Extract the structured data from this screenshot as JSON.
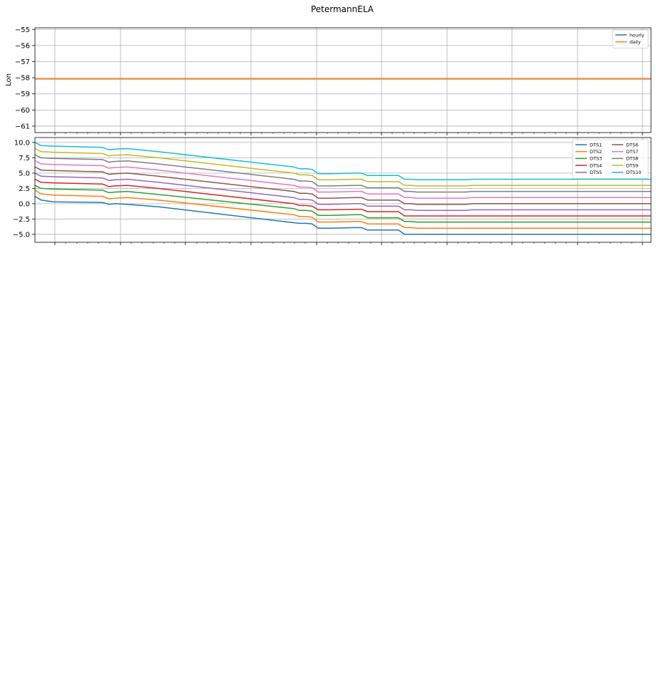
{
  "figure_title": "PetermannELA",
  "chart_data": [
    {
      "type": "line",
      "ylabel": "Lon",
      "xlabel": "",
      "ylim": [
        -61.4,
        -54.9
      ],
      "yticks": [
        -55,
        -56,
        -57,
        -58,
        -59,
        -60,
        -61
      ],
      "grid": true,
      "legend": {
        "placement": "top-right",
        "entries": [
          "hourly",
          "daily"
        ]
      },
      "series": [
        {
          "name": "hourly",
          "color": "#1f77b4",
          "x": [
            0,
            100
          ],
          "y": [
            -58.07,
            -58.07
          ]
        },
        {
          "name": "daily",
          "color": "#ff7f0e",
          "x": [
            0,
            100
          ],
          "y": [
            -58.08,
            -58.08
          ]
        }
      ]
    },
    {
      "type": "line",
      "xlabel": "",
      "ylabel": "",
      "ylim": [
        -6.3,
        10.8
      ],
      "yticks": [
        10.0,
        7.5,
        5.0,
        2.5,
        0.0,
        -2.5,
        -5.0
      ],
      "grid": true,
      "legend": {
        "placement": "top-right",
        "columns": 2,
        "entries": [
          "DTS1",
          "DTS2",
          "DTS3",
          "DTS4",
          "DTS5",
          "DTS6",
          "DTS7",
          "DTS8",
          "DTS9",
          "DTS10"
        ]
      },
      "x_norm": [
        0,
        1,
        3,
        11,
        12,
        13,
        15,
        20,
        42,
        43,
        44,
        45,
        46,
        47,
        48,
        52,
        53,
        54,
        56,
        59,
        60,
        61,
        62,
        69,
        70,
        71,
        72,
        100
      ],
      "series": [
        {
          "name": "DTS1",
          "color": "#1f77b4",
          "y": [
            1.2,
            0.6,
            0.3,
            0.2,
            -0.1,
            0.0,
            -0.1,
            -0.5,
            -3.1,
            -3.2,
            -3.2,
            -3.3,
            -4.0,
            -4.0,
            -4.0,
            -3.9,
            -3.9,
            -4.3,
            -4.3,
            -4.3,
            -5.0,
            -5.0,
            -5.0,
            -5.0,
            -5.0,
            -5.0,
            -5.0,
            -5.0
          ]
        },
        {
          "name": "DTS2",
          "color": "#ff7f0e",
          "y": [
            2.2,
            1.6,
            1.4,
            1.2,
            0.8,
            0.9,
            1.0,
            0.6,
            -1.8,
            -2.1,
            -2.1,
            -2.2,
            -3.0,
            -3.0,
            -3.0,
            -2.9,
            -2.9,
            -3.3,
            -3.3,
            -3.3,
            -3.9,
            -3.9,
            -4.0,
            -4.0,
            -4.0,
            -4.0,
            -4.0,
            -4.0
          ]
        },
        {
          "name": "DTS3",
          "color": "#2ca02c",
          "y": [
            3.0,
            2.5,
            2.4,
            2.2,
            1.8,
            1.9,
            2.0,
            1.5,
            -0.8,
            -1.1,
            -1.1,
            -1.2,
            -1.9,
            -1.9,
            -1.9,
            -1.8,
            -1.8,
            -2.3,
            -2.3,
            -2.3,
            -2.9,
            -2.9,
            -3.0,
            -3.0,
            -3.0,
            -3.0,
            -3.0,
            -3.0
          ]
        },
        {
          "name": "DTS4",
          "color": "#d62728",
          "y": [
            4.0,
            3.5,
            3.4,
            3.2,
            2.8,
            2.9,
            3.0,
            2.5,
            0.0,
            -0.3,
            -0.3,
            -0.4,
            -1.0,
            -1.0,
            -1.0,
            -0.9,
            -0.9,
            -1.3,
            -1.3,
            -1.3,
            -2.0,
            -2.0,
            -2.0,
            -2.0,
            -2.0,
            -2.0,
            -2.0,
            -2.0
          ]
        },
        {
          "name": "DTS5",
          "color": "#9467bd",
          "y": [
            5.0,
            4.5,
            4.4,
            4.2,
            3.8,
            3.9,
            4.0,
            3.5,
            1.0,
            0.7,
            0.7,
            0.6,
            -0.1,
            -0.1,
            -0.1,
            0.0,
            0.0,
            -0.4,
            -0.4,
            -0.4,
            -1.0,
            -1.0,
            -1.1,
            -1.1,
            -1.1,
            -1.0,
            -1.0,
            -1.0
          ]
        },
        {
          "name": "DTS6",
          "color": "#8c564b",
          "y": [
            6.0,
            5.5,
            5.4,
            5.2,
            4.8,
            4.9,
            5.0,
            4.5,
            2.0,
            1.7,
            1.7,
            1.6,
            0.9,
            0.9,
            0.9,
            1.0,
            1.0,
            0.6,
            0.6,
            0.6,
            0.0,
            0.0,
            -0.1,
            -0.1,
            -0.1,
            0.0,
            0.0,
            0.0
          ]
        },
        {
          "name": "DTS7",
          "color": "#e377c2",
          "y": [
            7.0,
            6.5,
            6.4,
            6.2,
            5.8,
            5.9,
            6.0,
            5.5,
            3.0,
            2.7,
            2.7,
            2.6,
            1.9,
            1.9,
            1.9,
            2.0,
            2.0,
            1.6,
            1.6,
            1.6,
            1.0,
            1.0,
            0.9,
            0.9,
            0.9,
            1.0,
            1.0,
            1.0
          ]
        },
        {
          "name": "DTS8",
          "color": "#7f7f7f",
          "y": [
            8.0,
            7.5,
            7.4,
            7.2,
            6.8,
            6.9,
            7.0,
            6.5,
            4.0,
            3.7,
            3.7,
            3.6,
            2.9,
            2.9,
            2.9,
            3.0,
            3.0,
            2.6,
            2.6,
            2.6,
            2.0,
            2.0,
            1.9,
            1.9,
            1.9,
            2.0,
            2.0,
            2.0
          ]
        },
        {
          "name": "DTS9",
          "color": "#bcbd22",
          "y": [
            9.0,
            8.5,
            8.4,
            8.2,
            7.8,
            7.9,
            8.0,
            7.5,
            5.0,
            4.7,
            4.7,
            4.6,
            3.9,
            3.9,
            3.9,
            4.0,
            4.0,
            3.6,
            3.6,
            3.6,
            3.0,
            3.0,
            2.9,
            2.9,
            2.9,
            3.0,
            3.0,
            3.0
          ]
        },
        {
          "name": "DTS10",
          "color": "#17becf",
          "y": [
            10.0,
            9.5,
            9.4,
            9.2,
            8.8,
            8.9,
            9.0,
            8.5,
            6.0,
            5.7,
            5.7,
            5.6,
            4.9,
            4.9,
            4.9,
            5.0,
            5.0,
            4.6,
            4.6,
            4.6,
            4.0,
            4.0,
            3.9,
            3.9,
            3.9,
            4.0,
            4.0,
            4.0
          ]
        }
      ]
    }
  ]
}
